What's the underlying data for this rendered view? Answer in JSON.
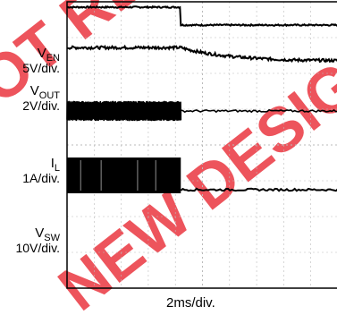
{
  "chart_data": {
    "type": "line",
    "subtype": "oscilloscope-capture",
    "xlabel": "2ms/div.",
    "grid": true,
    "colors": {
      "trace": "#000000",
      "grid": "#bbbbbb",
      "frame": "#000000",
      "watermark": "#e8202a"
    },
    "channels": [
      {
        "name_main": "V",
        "name_sub": "EN",
        "scale": "5V/div.",
        "shape": "step-down",
        "before": 3.85,
        "after": 3.35,
        "step_at": 0.42,
        "noise": 0.02
      },
      {
        "name_main": "V",
        "name_sub": "OUT",
        "scale": "2V/div.",
        "shape": "decay",
        "before": 2.72,
        "after": 2.4,
        "step_at": 0.42,
        "noise": 0.04
      },
      {
        "name_main": "I",
        "name_sub": "L",
        "scale": "1A/div.",
        "shape": "ripple-then-flat",
        "center": 0.95,
        "ripple": 0.28,
        "after": 0.95,
        "step_at": 0.42,
        "noise": 0.03
      },
      {
        "name_main": "V",
        "name_sub": "SW",
        "scale": "10V/div.",
        "shape": "switching-then-flat",
        "high": -0.35,
        "low": -1.35,
        "after": -1.25,
        "step_at": 0.42,
        "noise": 0.03
      }
    ]
  },
  "watermark": {
    "lines": [
      "NOT RECOMMENDED FOR",
      "NEW DESIGNS"
    ]
  }
}
